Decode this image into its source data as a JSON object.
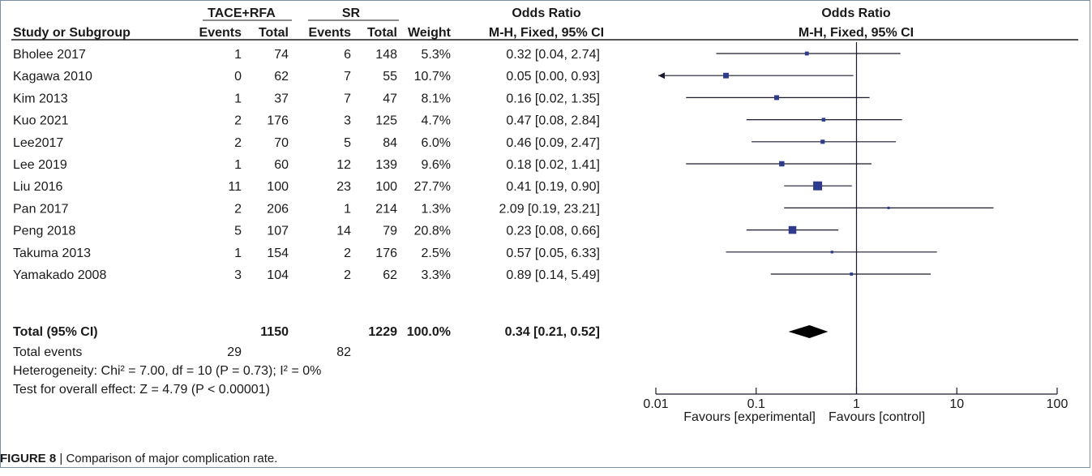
{
  "caption": {
    "label": "FIGURE 8",
    "separator": "|",
    "text": "Comparison of major complication rate."
  },
  "table": {
    "group1_header": "TACE+RFA",
    "group2_header": "SR",
    "or_header": "Odds Ratio",
    "or_method": "M-H, Fixed, 95% CI",
    "col_study": "Study or Subgroup",
    "col_events": "Events",
    "col_total": "Total",
    "col_weight": "Weight",
    "total_row": {
      "label": "Total (95% CI)",
      "total1": "1150",
      "total2": "1229",
      "weight": "100.0%",
      "or": "0.34 [0.21, 0.52]"
    },
    "total_events": {
      "label": "Total events",
      "events1": "29",
      "events2": "82"
    },
    "heterogeneity": "Heterogeneity: Chi² = 7.00, df = 10 (P = 0.73); I² = 0%",
    "overall_effect": "Test for overall effect: Z = 4.79 (P < 0.00001)"
  },
  "plot": {
    "title": "Odds Ratio",
    "subtitle": "M-H, Fixed, 95% CI",
    "xlabel_left": "Favours [experimental]",
    "xlabel_right": "Favours [control]",
    "ticks": [
      "0.01",
      "0.1",
      "1",
      "10",
      "100"
    ]
  },
  "colors": {
    "marker": "#2e3a8c",
    "line": "#1a1a2e"
  },
  "chart_data": {
    "type": "forest",
    "scale": "log",
    "xlim": [
      0.01,
      100
    ],
    "null_value": 1,
    "studies": [
      {
        "study": "Bholee 2017",
        "events1": 1,
        "total1": 74,
        "events2": 6,
        "total2": 148,
        "weight": "5.3%",
        "or": 0.32,
        "lo": 0.04,
        "hi": 2.74,
        "ci_text": "0.32 [0.04, 2.74]"
      },
      {
        "study": "Kagawa 2010",
        "events1": 0,
        "total1": 62,
        "events2": 7,
        "total2": 55,
        "weight": "10.7%",
        "or": 0.05,
        "lo": 0.0,
        "hi": 0.93,
        "ci_text": "0.05 [0.00, 0.93]"
      },
      {
        "study": "Kim 2013",
        "events1": 1,
        "total1": 37,
        "events2": 7,
        "total2": 47,
        "weight": "8.1%",
        "or": 0.16,
        "lo": 0.02,
        "hi": 1.35,
        "ci_text": "0.16 [0.02, 1.35]"
      },
      {
        "study": "Kuo 2021",
        "events1": 2,
        "total1": 176,
        "events2": 3,
        "total2": 125,
        "weight": "4.7%",
        "or": 0.47,
        "lo": 0.08,
        "hi": 2.84,
        "ci_text": "0.47 [0.08, 2.84]"
      },
      {
        "study": "Lee2017",
        "events1": 2,
        "total1": 70,
        "events2": 5,
        "total2": 84,
        "weight": "6.0%",
        "or": 0.46,
        "lo": 0.09,
        "hi": 2.47,
        "ci_text": "0.46 [0.09, 2.47]"
      },
      {
        "study": "Lee 2019",
        "events1": 1,
        "total1": 60,
        "events2": 12,
        "total2": 139,
        "weight": "9.6%",
        "or": 0.18,
        "lo": 0.02,
        "hi": 1.41,
        "ci_text": "0.18 [0.02, 1.41]"
      },
      {
        "study": "Liu 2016",
        "events1": 11,
        "total1": 100,
        "events2": 23,
        "total2": 100,
        "weight": "27.7%",
        "or": 0.41,
        "lo": 0.19,
        "hi": 0.9,
        "ci_text": "0.41 [0.19, 0.90]"
      },
      {
        "study": "Pan 2017",
        "events1": 2,
        "total1": 206,
        "events2": 1,
        "total2": 214,
        "weight": "1.3%",
        "or": 2.09,
        "lo": 0.19,
        "hi": 23.21,
        "ci_text": "2.09 [0.19, 23.21]"
      },
      {
        "study": "Peng 2018",
        "events1": 5,
        "total1": 107,
        "events2": 14,
        "total2": 79,
        "weight": "20.8%",
        "or": 0.23,
        "lo": 0.08,
        "hi": 0.66,
        "ci_text": "0.23 [0.08, 0.66]"
      },
      {
        "study": "Takuma 2013",
        "events1": 1,
        "total1": 154,
        "events2": 2,
        "total2": 176,
        "weight": "2.5%",
        "or": 0.57,
        "lo": 0.05,
        "hi": 6.33,
        "ci_text": "0.57 [0.05, 6.33]"
      },
      {
        "study": "Yamakado 2008",
        "events1": 3,
        "total1": 104,
        "events2": 2,
        "total2": 62,
        "weight": "3.3%",
        "or": 0.89,
        "lo": 0.14,
        "hi": 5.49,
        "ci_text": "0.89 [0.14, 5.49]"
      }
    ],
    "pooled": {
      "or": 0.34,
      "lo": 0.21,
      "hi": 0.52
    }
  }
}
